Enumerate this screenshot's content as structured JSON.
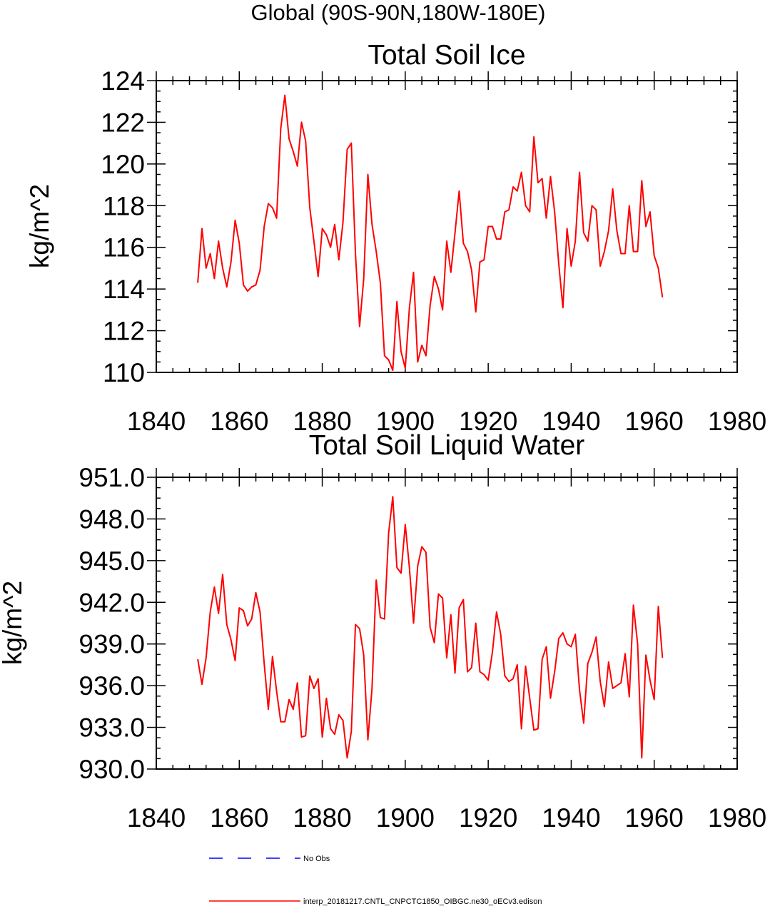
{
  "page_title": "Global (90S-90N,180W-180E)",
  "chart_data": [
    {
      "type": "line",
      "title": "Total Soil Ice",
      "ylabel": "kg/m^2",
      "xlabel": "",
      "xlim": [
        1840,
        1980
      ],
      "ylim": [
        110,
        124
      ],
      "xticks": [
        1840,
        1860,
        1880,
        1900,
        1920,
        1940,
        1960,
        1980
      ],
      "xtick_labels": [
        "1840",
        "1860",
        "1880",
        "1900",
        "1920",
        "1940",
        "1960",
        "1980"
      ],
      "yticks": [
        110,
        112,
        114,
        116,
        118,
        120,
        122,
        124
      ],
      "ytick_labels": [
        "110",
        "112",
        "114",
        "116",
        "118",
        "120",
        "122",
        "124"
      ],
      "series": [
        {
          "name": "interp_20181217.CNTL_CNPCTC1850_OIBGC.ne30_oECv3.edison",
          "color": "#ff0000",
          "x_start": 1850,
          "values": [
            114.3,
            116.9,
            115.0,
            115.7,
            114.5,
            116.3,
            115.0,
            114.1,
            115.3,
            117.3,
            116.2,
            114.2,
            113.9,
            114.1,
            114.2,
            114.9,
            117.0,
            118.1,
            117.9,
            117.4,
            121.7,
            123.3,
            121.2,
            120.6,
            119.9,
            122.0,
            121.1,
            117.9,
            116.3,
            114.6,
            116.9,
            116.6,
            116.0,
            117.1,
            115.4,
            117.2,
            120.7,
            121.0,
            115.7,
            112.2,
            114.5,
            119.5,
            117.1,
            115.8,
            114.3,
            110.8,
            110.6,
            110.1,
            113.4,
            111.0,
            110.2,
            113.1,
            114.8,
            110.5,
            111.3,
            110.8,
            113.2,
            114.6,
            114.0,
            113.0,
            116.3,
            114.8,
            116.7,
            118.7,
            116.2,
            115.8,
            114.9,
            112.9,
            115.3,
            115.4,
            117.0,
            117.0,
            116.4,
            116.4,
            117.7,
            117.8,
            118.9,
            118.7,
            119.6,
            118.0,
            117.7,
            121.3,
            119.1,
            119.3,
            117.4,
            119.4,
            117.7,
            115.2,
            113.1,
            116.9,
            115.1,
            116.3,
            119.6,
            116.7,
            116.3,
            118.0,
            117.8,
            115.1,
            115.8,
            116.8,
            118.8,
            116.8,
            115.7,
            115.7,
            118.0,
            115.8,
            115.8,
            119.2,
            117.0,
            117.7,
            115.6,
            115.0,
            113.6
          ]
        }
      ]
    },
    {
      "type": "line",
      "title": "Total Soil Liquid Water",
      "ylabel": "kg/m^2",
      "xlabel": "",
      "xlim": [
        1840,
        1980
      ],
      "ylim": [
        930,
        951
      ],
      "xticks": [
        1840,
        1860,
        1880,
        1900,
        1920,
        1940,
        1960,
        1980
      ],
      "xtick_labels": [
        "1840",
        "1860",
        "1880",
        "1900",
        "1920",
        "1940",
        "1960",
        "1980"
      ],
      "yticks": [
        930,
        933,
        936,
        939,
        942,
        945,
        948,
        951
      ],
      "ytick_labels": [
        "930.0",
        "933.0",
        "936.0",
        "939.0",
        "942.0",
        "945.0",
        "948.0",
        "951.0"
      ],
      "series": [
        {
          "name": "interp_20181217.CNTL_CNPCTC1850_OIBGC.ne30_oECv3.edison",
          "color": "#ff0000",
          "x_start": 1850,
          "values": [
            937.9,
            936.1,
            938.0,
            941.3,
            943.1,
            941.2,
            944.0,
            940.4,
            939.3,
            937.8,
            941.6,
            941.4,
            940.3,
            940.8,
            942.7,
            941.3,
            937.6,
            934.3,
            938.1,
            935.6,
            933.4,
            933.4,
            935.0,
            934.3,
            936.2,
            932.3,
            932.4,
            936.7,
            935.8,
            936.5,
            932.3,
            935.1,
            932.9,
            932.5,
            933.9,
            933.5,
            930.8,
            932.7,
            940.4,
            940.1,
            938.2,
            932.1,
            935.8,
            943.6,
            940.9,
            940.8,
            947.0,
            949.6,
            944.5,
            944.1,
            947.6,
            944.5,
            940.5,
            944.6,
            946.0,
            945.6,
            940.2,
            939.1,
            942.6,
            942.3,
            938.0,
            941.1,
            936.9,
            941.6,
            942.2,
            937.0,
            937.3,
            940.5,
            937.0,
            936.8,
            936.4,
            938.4,
            941.3,
            939.7,
            936.7,
            936.3,
            936.5,
            937.5,
            932.9,
            937.4,
            935.1,
            932.8,
            932.9,
            937.9,
            938.8,
            935.1,
            937.0,
            939.4,
            939.8,
            939.0,
            938.8,
            939.7,
            935.7,
            933.3,
            937.6,
            938.4,
            939.5,
            936.3,
            934.5,
            937.7,
            935.8,
            936.0,
            936.2,
            938.3,
            935.2,
            941.8,
            939.0,
            930.8,
            938.2,
            936.4,
            935.0,
            941.7,
            938.0
          ]
        }
      ]
    }
  ],
  "legend": [
    {
      "label": "No Obs",
      "color": "#0000ff",
      "style": "dashed"
    },
    {
      "label": "interp_20181217.CNTL_CNPCTC1850_OIBGC.ne30_oECv3.edison",
      "color": "#ff0000",
      "style": "solid"
    }
  ]
}
